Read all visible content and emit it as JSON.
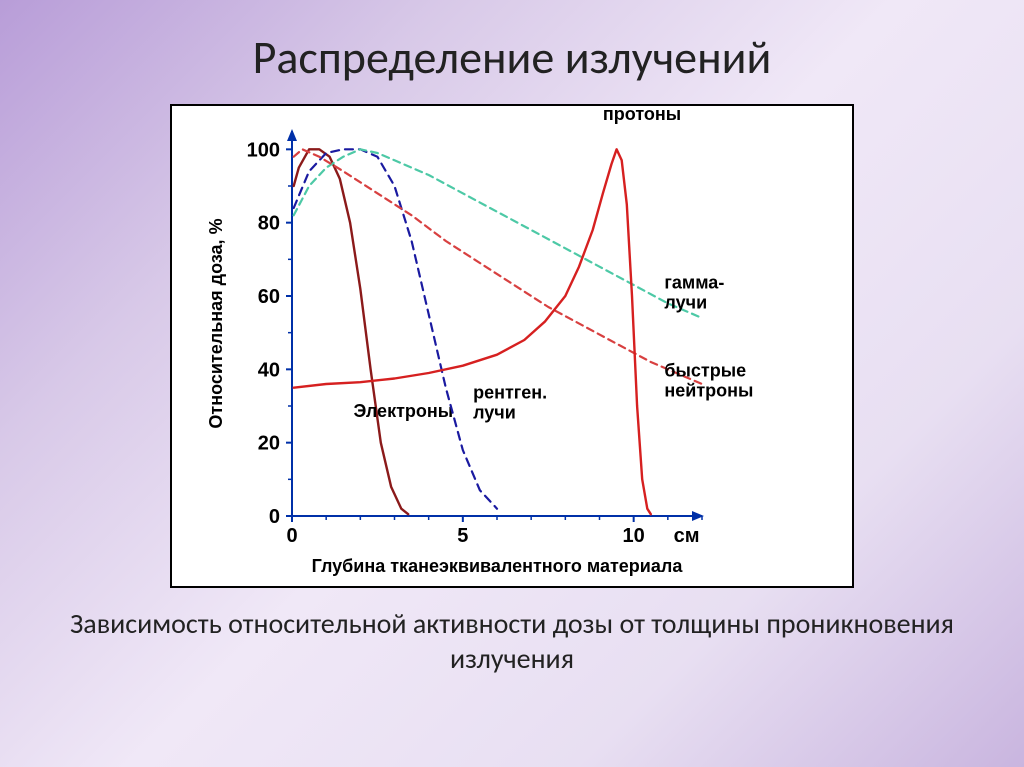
{
  "slide": {
    "title": "Распределение излучений",
    "caption": "Зависимость относительной активности дозы от толщины проникновения излучения",
    "title_fontsize": 46,
    "caption_fontsize": 28
  },
  "chart": {
    "type": "line",
    "background_color": "#ffffff",
    "plot_border_color": "#000000",
    "axis_color": "#0030a8",
    "axis_width": 2,
    "tick_color": "#0030a8",
    "x_axis": {
      "label": "Глубина тканеэквивалентного материала",
      "label_fontsize": 18,
      "unit_label": "см",
      "range": [
        0,
        12
      ],
      "ticks": [
        0,
        5,
        10
      ],
      "tick_fontsize": 20,
      "minor_ticks": true
    },
    "y_axis": {
      "label": "Относительная доза, %",
      "label_fontsize": 18,
      "range": [
        0,
        105
      ],
      "ticks": [
        0,
        20,
        40,
        60,
        80,
        100
      ],
      "tick_fontsize": 20,
      "minor_ticks": true
    },
    "series": [
      {
        "name": "электроны",
        "label": "Электроны",
        "color": "#8b1a1a",
        "dash": "solid",
        "width": 2.4,
        "label_pos": {
          "x": 1.8,
          "y": 27
        },
        "label_fontsize": 18,
        "points": [
          [
            0.05,
            90
          ],
          [
            0.2,
            95
          ],
          [
            0.5,
            100
          ],
          [
            0.8,
            100
          ],
          [
            1.1,
            98
          ],
          [
            1.4,
            92
          ],
          [
            1.7,
            80
          ],
          [
            2.0,
            62
          ],
          [
            2.3,
            40
          ],
          [
            2.6,
            20
          ],
          [
            2.9,
            8
          ],
          [
            3.2,
            2
          ],
          [
            3.4,
            0.5
          ]
        ]
      },
      {
        "name": "рентген. лучи",
        "label": "рентген. лучи",
        "color": "#1a1aa0",
        "dash": "8 6",
        "width": 2.2,
        "label_pos": {
          "x": 5.3,
          "y": 32
        },
        "label_fontsize": 18,
        "points": [
          [
            0.05,
            84
          ],
          [
            0.5,
            94
          ],
          [
            1.0,
            99
          ],
          [
            1.5,
            100
          ],
          [
            2.0,
            100
          ],
          [
            2.5,
            98
          ],
          [
            3.0,
            90
          ],
          [
            3.5,
            75
          ],
          [
            4.0,
            55
          ],
          [
            4.5,
            35
          ],
          [
            5.0,
            18
          ],
          [
            5.5,
            7
          ],
          [
            6.0,
            2
          ]
        ]
      },
      {
        "name": "гамма-лучи",
        "label": "гамма- лучи",
        "color": "#4dc9a6",
        "dash": "7 5",
        "width": 2.2,
        "label_pos": {
          "x": 10.9,
          "y": 62
        },
        "label_fontsize": 18,
        "points": [
          [
            0.05,
            82
          ],
          [
            0.5,
            90
          ],
          [
            1.0,
            95
          ],
          [
            1.5,
            98
          ],
          [
            2.0,
            100
          ],
          [
            2.5,
            99
          ],
          [
            3.0,
            97
          ],
          [
            4.0,
            93
          ],
          [
            5.0,
            88
          ],
          [
            6.0,
            83
          ],
          [
            7.0,
            78
          ],
          [
            8.0,
            73
          ],
          [
            9.0,
            68
          ],
          [
            10.0,
            63
          ],
          [
            11.0,
            58
          ],
          [
            12.0,
            54
          ]
        ]
      },
      {
        "name": "быстрые нейтроны",
        "label": "быстрые нейтроны",
        "color": "#d84040",
        "dash": "7 5",
        "width": 2.2,
        "label_pos": {
          "x": 10.9,
          "y": 38
        },
        "label_fontsize": 18,
        "points": [
          [
            0.05,
            98
          ],
          [
            0.3,
            100
          ],
          [
            0.8,
            98
          ],
          [
            1.5,
            94
          ],
          [
            2.5,
            88
          ],
          [
            3.5,
            82
          ],
          [
            4.5,
            75
          ],
          [
            5.5,
            69
          ],
          [
            6.5,
            63
          ],
          [
            7.5,
            57
          ],
          [
            8.5,
            52
          ],
          [
            9.5,
            47
          ],
          [
            10.5,
            42
          ],
          [
            11.5,
            38
          ],
          [
            12.0,
            36
          ]
        ]
      },
      {
        "name": "протоны",
        "label": "протоны",
        "color": "#d62020",
        "dash": "solid",
        "width": 2.4,
        "label_pos": {
          "x": 9.1,
          "y": 108
        },
        "label_fontsize": 18,
        "points": [
          [
            0.05,
            35
          ],
          [
            1.0,
            36
          ],
          [
            2.0,
            36.5
          ],
          [
            3.0,
            37.5
          ],
          [
            4.0,
            39
          ],
          [
            5.0,
            41
          ],
          [
            6.0,
            44
          ],
          [
            6.8,
            48
          ],
          [
            7.4,
            53
          ],
          [
            8.0,
            60
          ],
          [
            8.4,
            68
          ],
          [
            8.8,
            78
          ],
          [
            9.1,
            88
          ],
          [
            9.35,
            96
          ],
          [
            9.5,
            100
          ],
          [
            9.65,
            97
          ],
          [
            9.8,
            85
          ],
          [
            9.95,
            60
          ],
          [
            10.1,
            30
          ],
          [
            10.25,
            10
          ],
          [
            10.4,
            2
          ],
          [
            10.5,
            0.5
          ]
        ]
      }
    ]
  }
}
